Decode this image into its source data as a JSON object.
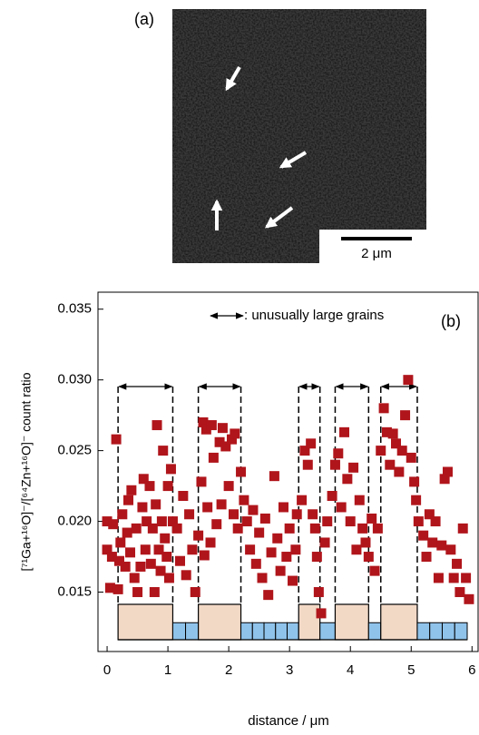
{
  "panel_a": {
    "label": "(a)",
    "scale_bar": "2 μm"
  },
  "chart_data": {
    "type": "scatter",
    "panel_label": "(b)",
    "xlabel": "distance / μm",
    "ylabel": "[⁷¹Ga+¹⁶O]⁻/[⁶⁴Zn+¹⁶O]⁻ count ratio",
    "legend_text": ": unusually large grains",
    "xlim": [
      -0.15,
      6.1
    ],
    "ylim": [
      0.0108,
      0.0362
    ],
    "xticks": [
      0,
      1,
      2,
      3,
      4,
      5,
      6
    ],
    "yticks": [
      {
        "value": 0.015,
        "label": "0.015"
      },
      {
        "value": 0.02,
        "label": "0.020"
      },
      {
        "value": 0.025,
        "label": "0.025"
      },
      {
        "value": 0.03,
        "label": "0.030"
      },
      {
        "value": 0.035,
        "label": "0.035"
      }
    ],
    "large_grains": [
      [
        0.18,
        1.08
      ],
      [
        1.5,
        2.2
      ],
      [
        3.15,
        3.5
      ],
      [
        3.75,
        4.3
      ],
      [
        4.5,
        5.1
      ]
    ],
    "series": [
      {
        "color": "#b0151b",
        "x": [
          0.0,
          0.0,
          0.05,
          0.08,
          0.1,
          0.15,
          0.18,
          0.2,
          0.22,
          0.25,
          0.3,
          0.33,
          0.35,
          0.38,
          0.4,
          0.45,
          0.48,
          0.5,
          0.55,
          0.58,
          0.6,
          0.63,
          0.65,
          0.7,
          0.72,
          0.75,
          0.78,
          0.8,
          0.82,
          0.85,
          0.88,
          0.9,
          0.92,
          0.95,
          0.98,
          1.0,
          1.02,
          1.05,
          1.08,
          1.15,
          1.2,
          1.25,
          1.3,
          1.35,
          1.4,
          1.45,
          1.5,
          1.55,
          1.58,
          1.6,
          1.63,
          1.65,
          1.7,
          1.72,
          1.75,
          1.8,
          1.85,
          1.88,
          1.9,
          1.95,
          2.0,
          2.05,
          2.08,
          2.1,
          2.15,
          2.2,
          2.25,
          2.3,
          2.35,
          2.4,
          2.45,
          2.5,
          2.55,
          2.6,
          2.65,
          2.7,
          2.75,
          2.8,
          2.85,
          2.9,
          2.95,
          3.0,
          3.05,
          3.1,
          3.12,
          3.2,
          3.25,
          3.3,
          3.35,
          3.38,
          3.42,
          3.45,
          3.48,
          3.52,
          3.58,
          3.62,
          3.7,
          3.75,
          3.8,
          3.85,
          3.9,
          3.95,
          4.0,
          4.05,
          4.1,
          4.15,
          4.2,
          4.25,
          4.3,
          4.35,
          4.4,
          4.45,
          4.5,
          4.55,
          4.6,
          4.65,
          4.7,
          4.75,
          4.8,
          4.85,
          4.9,
          4.95,
          5.0,
          5.05,
          5.08,
          5.12,
          5.2,
          5.25,
          5.3,
          5.35,
          5.4,
          5.45,
          5.5,
          5.55,
          5.6,
          5.65,
          5.7,
          5.75,
          5.8,
          5.85,
          5.9,
          5.95
        ],
        "values": [
          0.02,
          0.018,
          0.0153,
          0.0175,
          0.0198,
          0.0258,
          0.0152,
          0.0172,
          0.0185,
          0.0205,
          0.0168,
          0.0192,
          0.0215,
          0.0178,
          0.0222,
          0.016,
          0.0195,
          0.015,
          0.0168,
          0.021,
          0.023,
          0.018,
          0.02,
          0.0225,
          0.017,
          0.0195,
          0.015,
          0.0212,
          0.0268,
          0.018,
          0.0165,
          0.02,
          0.025,
          0.0188,
          0.0175,
          0.0225,
          0.016,
          0.0237,
          0.02,
          0.0195,
          0.0172,
          0.0218,
          0.0162,
          0.0205,
          0.018,
          0.015,
          0.019,
          0.0228,
          0.027,
          0.0176,
          0.0265,
          0.021,
          0.0185,
          0.0268,
          0.0245,
          0.0198,
          0.0256,
          0.0212,
          0.0266,
          0.0253,
          0.0225,
          0.0258,
          0.0205,
          0.0262,
          0.0195,
          0.0235,
          0.0215,
          0.02,
          0.018,
          0.0208,
          0.017,
          0.0192,
          0.016,
          0.0202,
          0.0148,
          0.0178,
          0.0232,
          0.0188,
          0.0165,
          0.021,
          0.0175,
          0.0195,
          0.0158,
          0.018,
          0.0205,
          0.0215,
          0.025,
          0.024,
          0.0255,
          0.0205,
          0.0195,
          0.0175,
          0.015,
          0.0135,
          0.0185,
          0.02,
          0.0218,
          0.024,
          0.0248,
          0.021,
          0.0263,
          0.023,
          0.02,
          0.0238,
          0.018,
          0.0215,
          0.0195,
          0.0185,
          0.0175,
          0.0202,
          0.0165,
          0.0195,
          0.025,
          0.028,
          0.0263,
          0.024,
          0.0262,
          0.0255,
          0.0235,
          0.025,
          0.0275,
          0.03,
          0.0245,
          0.0228,
          0.0215,
          0.02,
          0.019,
          0.0175,
          0.0205,
          0.0185,
          0.02,
          0.016,
          0.0183,
          0.023,
          0.0235,
          0.018,
          0.016,
          0.017,
          0.015,
          0.0195,
          0.016,
          0.0145
        ]
      }
    ]
  }
}
